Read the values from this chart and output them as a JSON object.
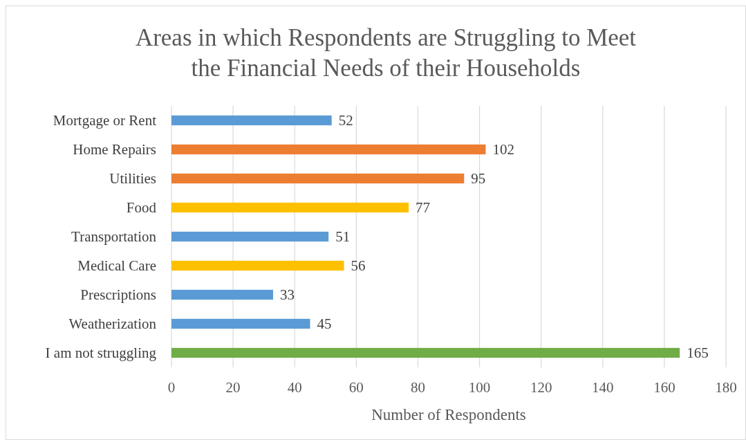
{
  "chart_data": {
    "type": "bar",
    "orientation": "horizontal",
    "title": "Areas in which Respondents are Struggling to Meet the Financial Needs of their Households",
    "xlabel": "Number of Respondents",
    "categories": [
      "Mortgage or Rent",
      "Home Repairs",
      "Utilities",
      "Food",
      "Transportation",
      "Medical Care",
      "Prescriptions",
      "Weatherization",
      "I am not struggling"
    ],
    "values": [
      52,
      102,
      95,
      77,
      51,
      56,
      33,
      45,
      165
    ],
    "colors": [
      "#5b9bd5",
      "#ed7d31",
      "#ed7d31",
      "#ffc000",
      "#5b9bd5",
      "#ffc000",
      "#5b9bd5",
      "#5b9bd5",
      "#70ad47"
    ],
    "xlim": [
      0,
      180
    ],
    "xticks": [
      0,
      20,
      40,
      60,
      80,
      100,
      120,
      140,
      160,
      180
    ],
    "grid": "x",
    "data_labels": true
  }
}
